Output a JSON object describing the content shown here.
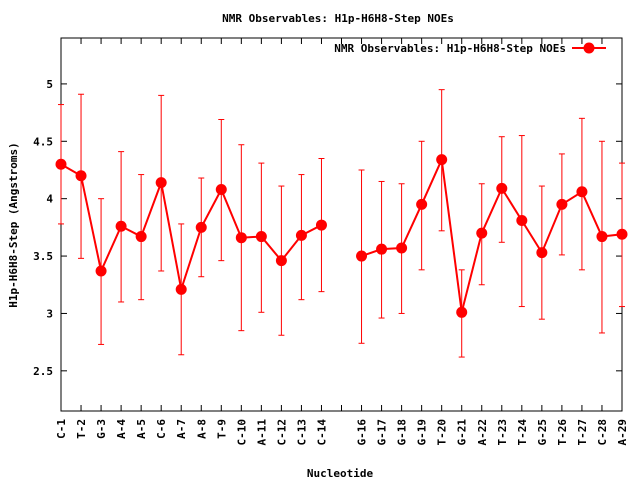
{
  "chart_data": {
    "type": "line",
    "title": "NMR Observables: H1p-H6H8-Step NOEs",
    "xlabel": "Nucleotide",
    "ylabel": "H1p-H6H8-Step (Angstroms)",
    "ylim": [
      2.15,
      5.4
    ],
    "yticks": [
      2.5,
      3,
      3.5,
      4,
      4.5,
      5
    ],
    "ytick_labels": [
      "2.5",
      "3",
      "3.5",
      "4",
      "4.5",
      "5"
    ],
    "categories": [
      "C-1",
      "T-2",
      "G-3",
      "A-4",
      "A-5",
      "C-6",
      "A-7",
      "A-8",
      "T-9",
      "C-10",
      "A-11",
      "C-12",
      "C-13",
      "C-14",
      "",
      "G-16",
      "G-17",
      "G-18",
      "G-19",
      "T-20",
      "G-21",
      "A-22",
      "T-23",
      "T-24",
      "G-25",
      "T-26",
      "T-27",
      "C-28",
      "A-29"
    ],
    "legend": {
      "position": "top-right"
    },
    "series": [
      {
        "name": "NMR Observables: H1p-H6H8-Step NOEs",
        "color": "#ff0000",
        "values": [
          4.3,
          4.2,
          3.37,
          3.76,
          3.67,
          4.14,
          3.21,
          3.75,
          4.08,
          3.66,
          3.67,
          3.46,
          3.68,
          3.77,
          null,
          3.5,
          3.56,
          3.57,
          3.95,
          4.34,
          3.01,
          3.7,
          4.09,
          3.81,
          3.53,
          3.95,
          4.06,
          3.67,
          3.69
        ],
        "err_low": [
          3.78,
          3.48,
          2.73,
          3.1,
          3.12,
          3.37,
          2.64,
          3.32,
          3.46,
          2.85,
          3.01,
          2.81,
          3.12,
          3.19,
          null,
          2.74,
          2.96,
          3.0,
          3.38,
          3.72,
          2.62,
          3.25,
          3.62,
          3.06,
          2.95,
          3.51,
          3.38,
          2.83,
          3.06
        ],
        "err_high": [
          4.82,
          4.91,
          4.0,
          4.41,
          4.21,
          4.9,
          3.78,
          4.18,
          4.69,
          4.47,
          4.31,
          4.11,
          4.21,
          4.35,
          null,
          4.25,
          4.15,
          4.13,
          4.5,
          4.95,
          3.38,
          4.13,
          4.54,
          4.55,
          4.11,
          4.39,
          4.7,
          4.5,
          4.31
        ]
      }
    ]
  }
}
